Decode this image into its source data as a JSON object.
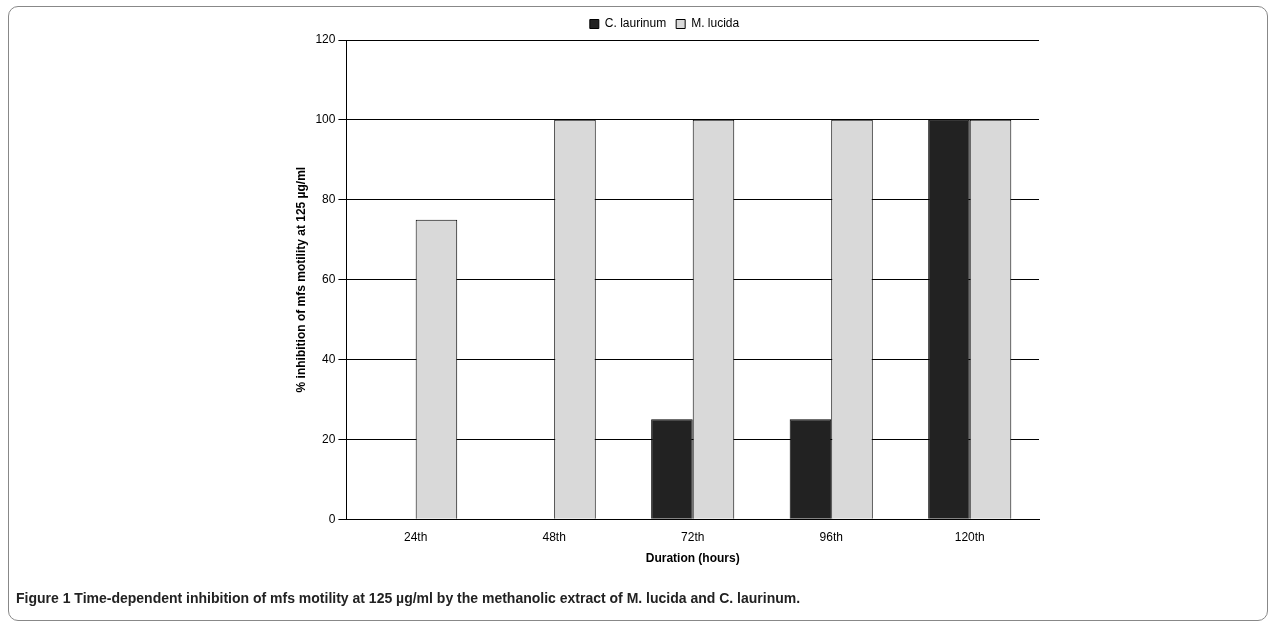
{
  "chart_data": {
    "type": "bar",
    "xlabel": "Duration (hours)",
    "ylabel": "% inhibition of mfs motility at 125 µg/ml",
    "categories": [
      "24th",
      "48th",
      "72th",
      "96th",
      "120th"
    ],
    "series": [
      {
        "name": "C. laurinum",
        "color": "#222222",
        "values": [
          0,
          0,
          25,
          25,
          100
        ]
      },
      {
        "name": "M. lucida",
        "color": "#d9d9d9",
        "values": [
          75,
          100,
          100,
          100,
          100
        ]
      }
    ],
    "ylim": [
      0,
      120
    ],
    "yticks": [
      0,
      20,
      40,
      60,
      80,
      100,
      120
    ],
    "grid": "y",
    "legend": "top",
    "annotations": [
      "Figure 1 Time-dependent inhibition of mfs motility at 125 µg/ml by the methanolic extract of M. lucida and C. laurinum."
    ]
  }
}
